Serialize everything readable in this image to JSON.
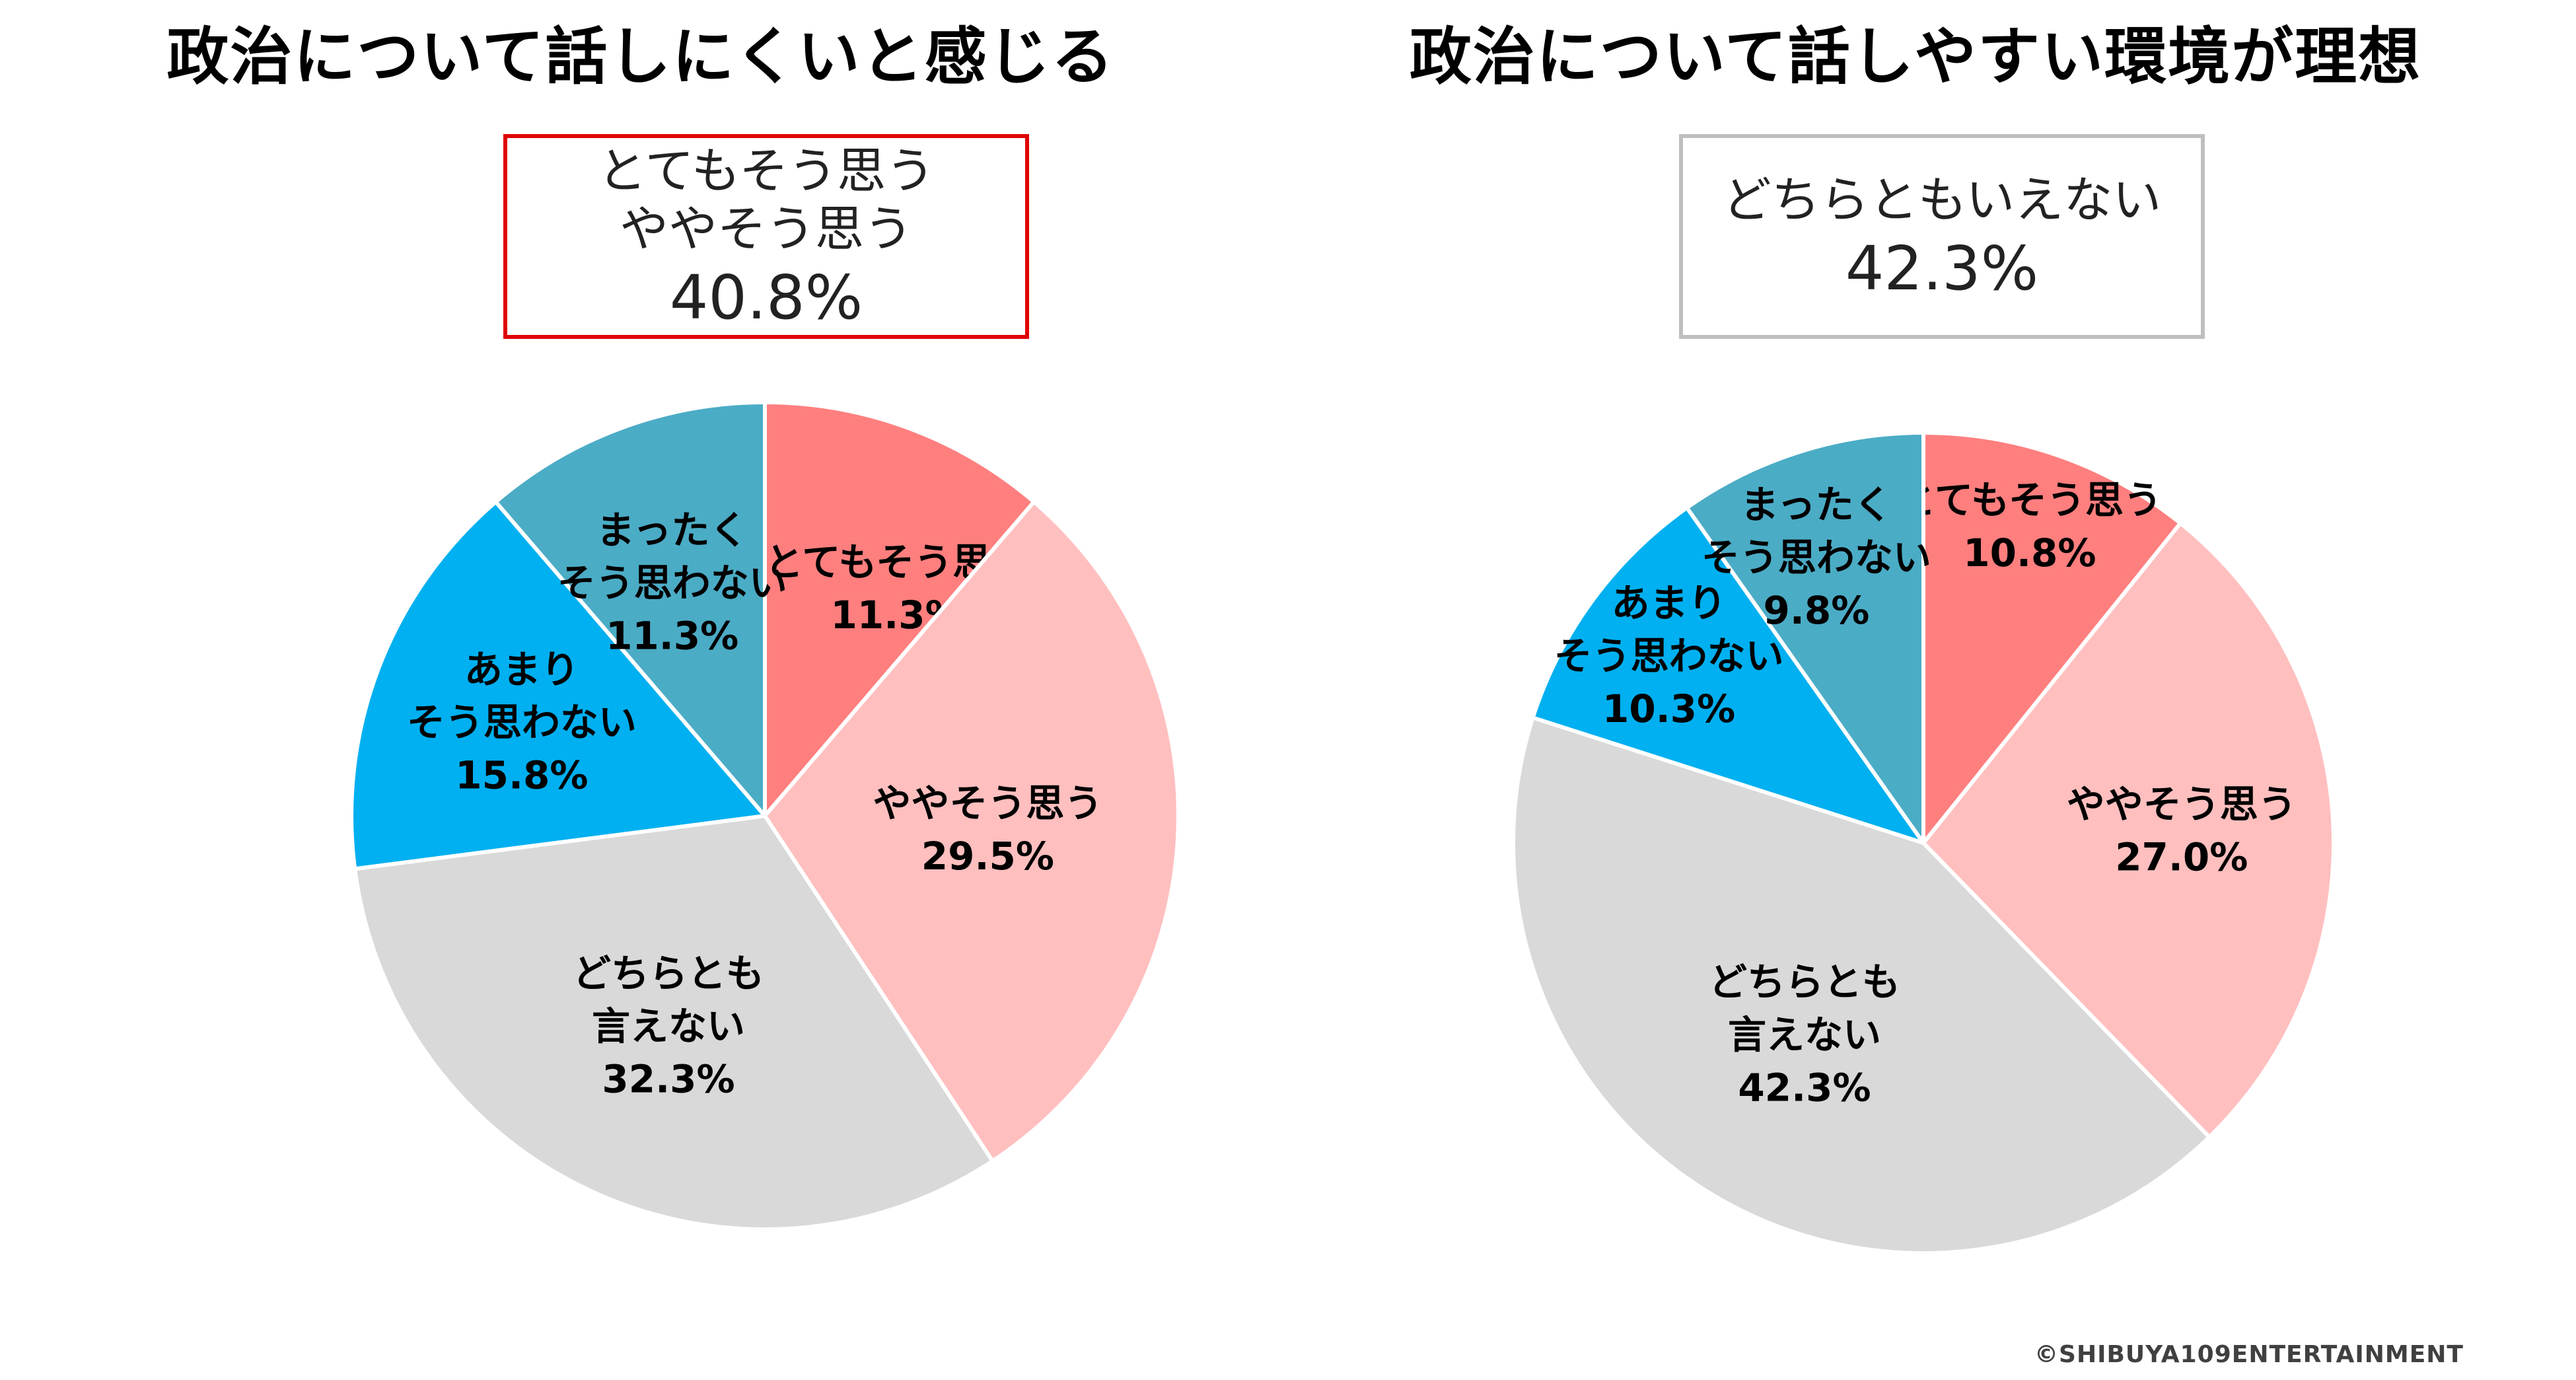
{
  "chart_data": [
    {
      "type": "pie",
      "title": "政治について話しにくいと感じる",
      "callout": {
        "lines": [
          "とてもそう思う",
          "ややそう思う"
        ],
        "value": "40.8%",
        "border_color": "#e00000"
      },
      "slices": [
        {
          "label_lines": [
            "とてもそう思う"
          ],
          "value": 11.3,
          "value_label": "11.3%",
          "color": "#ff7f7f"
        },
        {
          "label_lines": [
            "ややそう思う"
          ],
          "value": 29.5,
          "value_label": "29.5%",
          "color": "#ffbfbf"
        },
        {
          "label_lines": [
            "どちらとも",
            "言えない"
          ],
          "value": 32.3,
          "value_label": "32.3%",
          "color": "#d9d9d9"
        },
        {
          "label_lines": [
            "あまり",
            "そう思わない"
          ],
          "value": 15.8,
          "value_label": "15.8%",
          "color": "#00b0f0"
        },
        {
          "label_lines": [
            "まったく",
            "そう思わない"
          ],
          "value": 11.3,
          "value_label": "11.3%",
          "color": "#4bacc6"
        }
      ]
    },
    {
      "type": "pie",
      "title": "政治について話しやすい環境が理想",
      "callout": {
        "lines": [
          "どちらともいえない"
        ],
        "value": "42.3%",
        "border_color": "#bfbfbf"
      },
      "slices": [
        {
          "label_lines": [
            "とてもそう思う"
          ],
          "value": 10.8,
          "value_label": "10.8%",
          "color": "#ff7f7f"
        },
        {
          "label_lines": [
            "ややそう思う"
          ],
          "value": 27.0,
          "value_label": "27.0%",
          "color": "#ffbfbf"
        },
        {
          "label_lines": [
            "どちらとも",
            "言えない"
          ],
          "value": 42.3,
          "value_label": "42.3%",
          "color": "#d9d9d9"
        },
        {
          "label_lines": [
            "あまり",
            "そう思わない"
          ],
          "value": 10.3,
          "value_label": "10.3%",
          "color": "#00b0f0"
        },
        {
          "label_lines": [
            "まったく",
            "そう思わない"
          ],
          "value": 9.8,
          "value_label": "9.8%",
          "color": "#4bacc6"
        }
      ]
    }
  ],
  "footer": {
    "copyright": "©SHIBUYA109ENTERTAINMENT"
  }
}
